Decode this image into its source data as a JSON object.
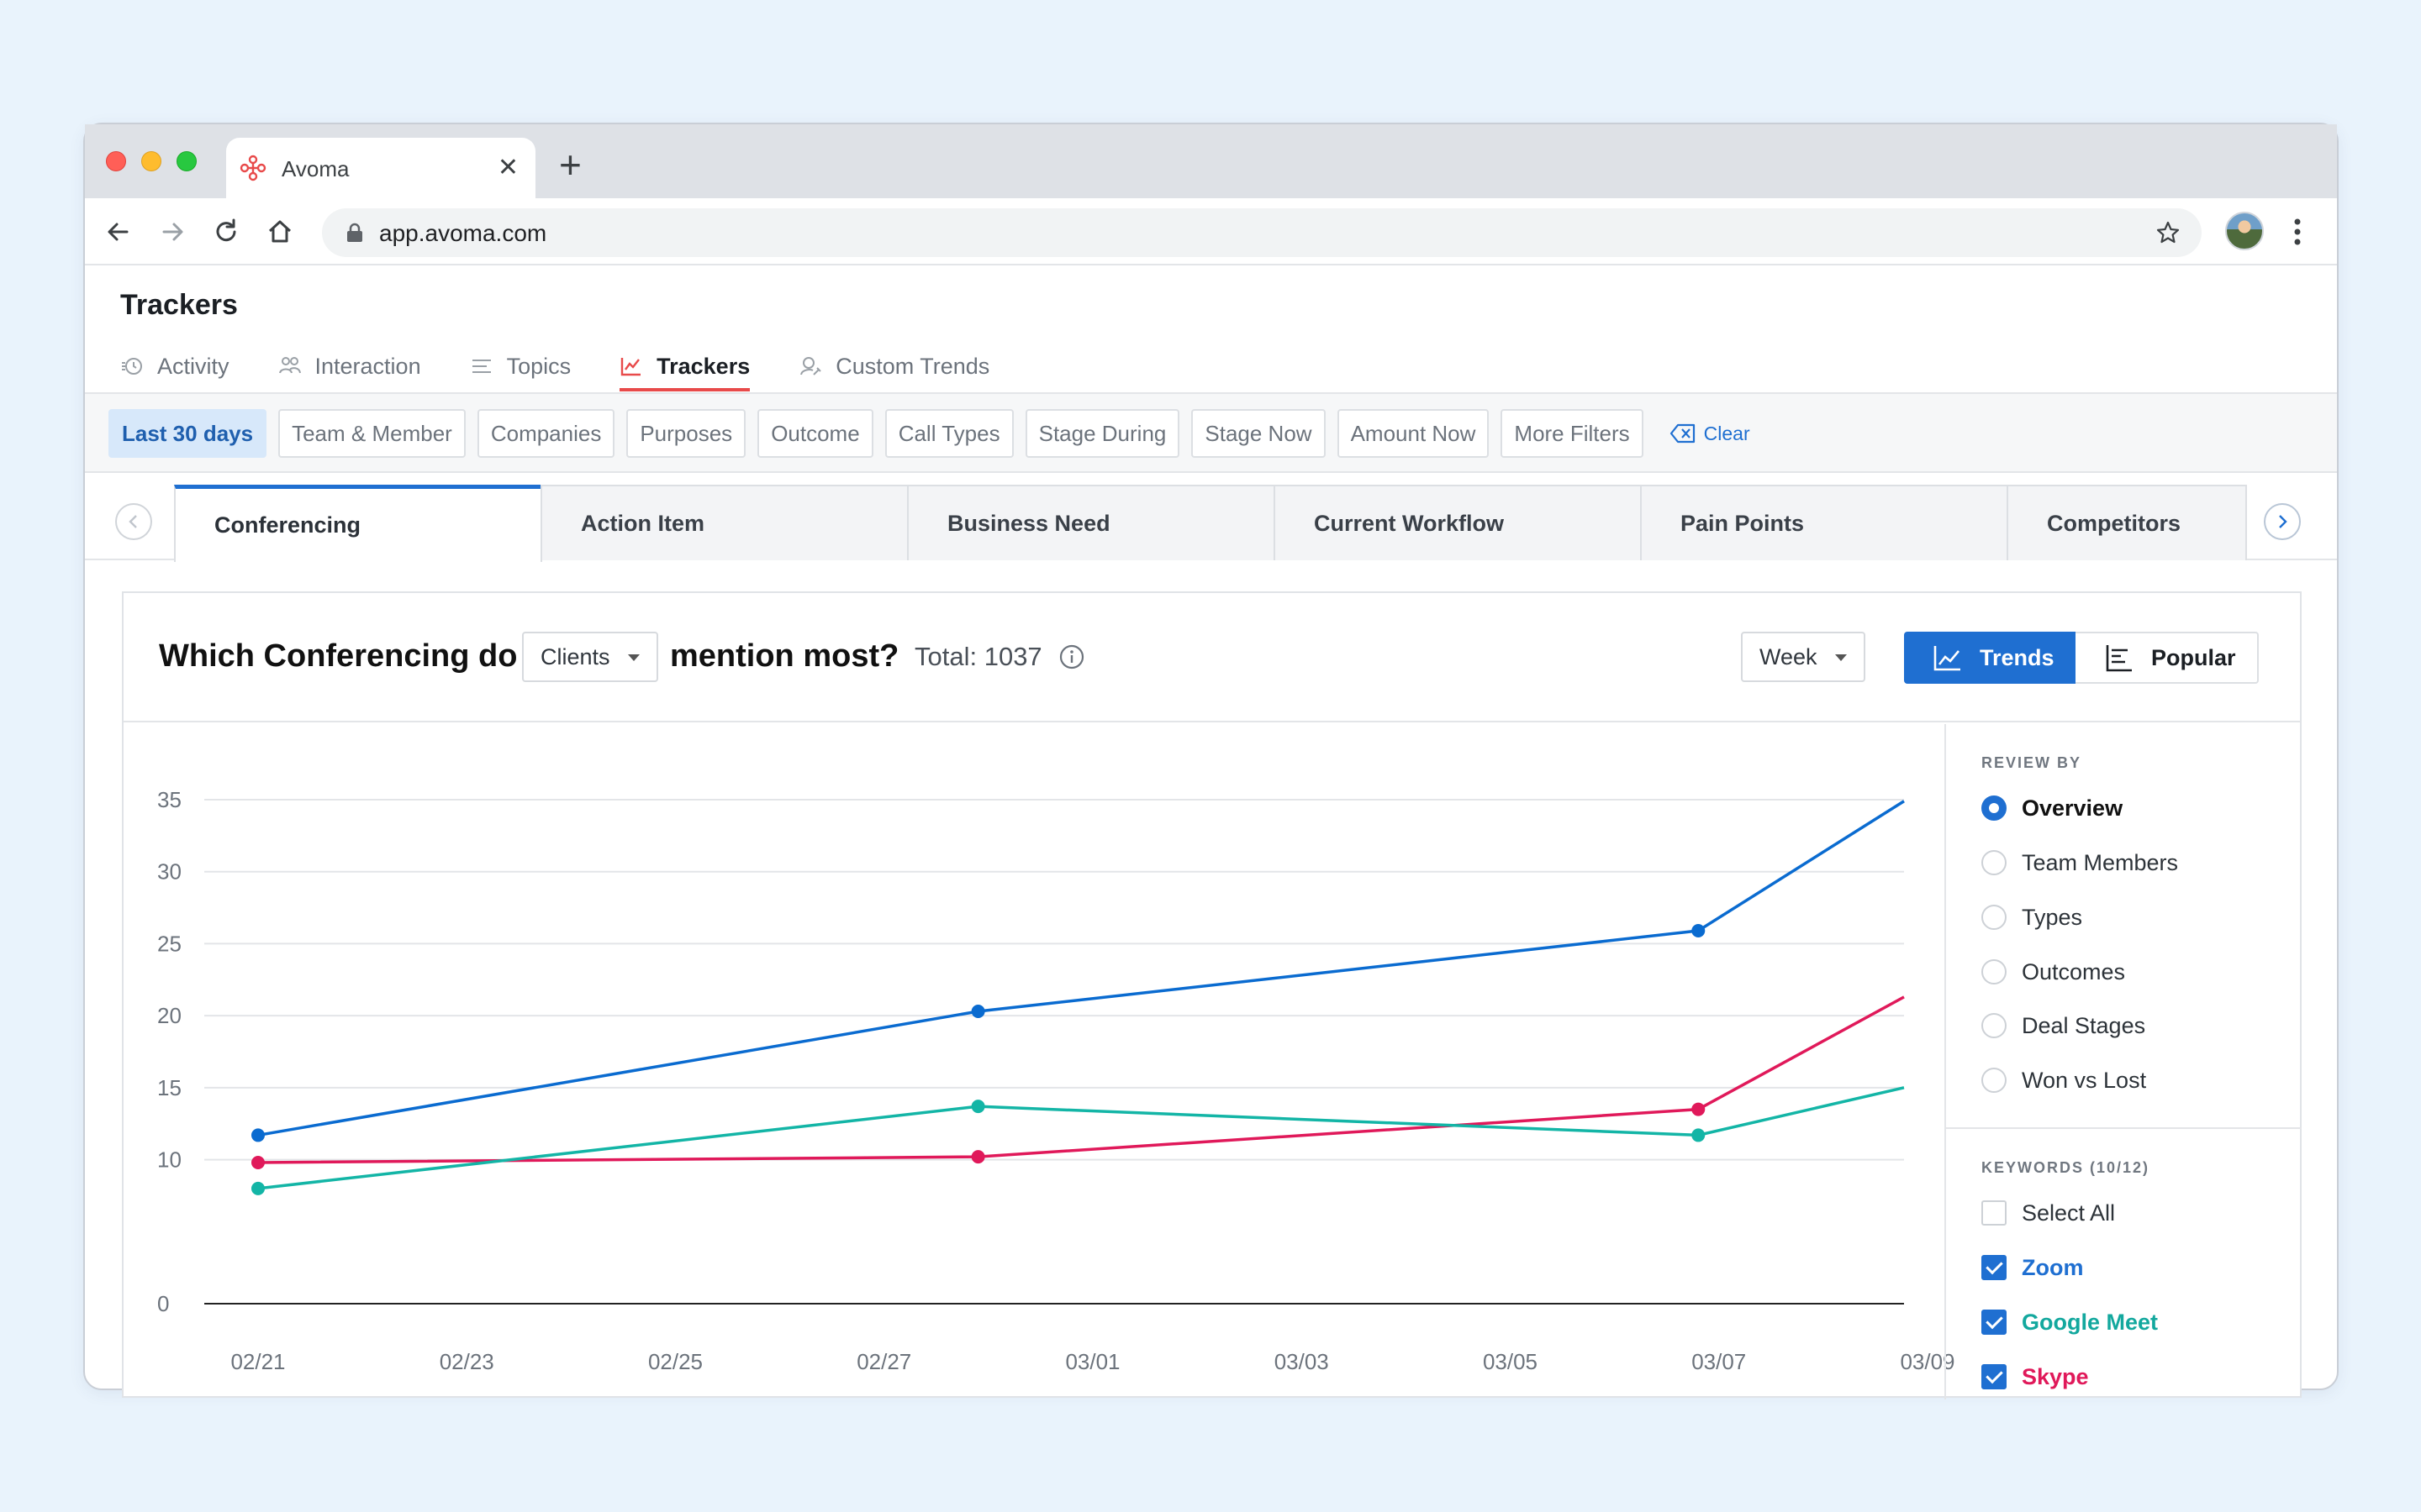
{
  "browser": {
    "tab_title": "Avoma",
    "url": "app.avoma.com"
  },
  "app": {
    "page_title": "Trackers",
    "nav_tabs": [
      {
        "label": "Activity",
        "icon": "activity-icon"
      },
      {
        "label": "Interaction",
        "icon": "interaction-icon"
      },
      {
        "label": "Topics",
        "icon": "topics-icon"
      },
      {
        "label": "Trackers",
        "icon": "trackers-icon",
        "active": true
      },
      {
        "label": "Custom Trends",
        "icon": "custom-trends-icon"
      }
    ],
    "filters": [
      "Last 30 days",
      "Team & Member",
      "Companies",
      "Purposes",
      "Outcome",
      "Call Types",
      "Stage During",
      "Stage Now",
      "Amount Now",
      "More Filters"
    ],
    "clear_label": "Clear",
    "keyword_tabs": [
      "Conferencing",
      "Action Item",
      "Business Need",
      "Current Workflow",
      "Pain Points",
      "Competitors"
    ],
    "active_keyword_tab": "Conferencing"
  },
  "card": {
    "question_prefix": "Which Conferencing do",
    "audience_select": "Clients",
    "question_suffix": "mention most?",
    "total": "Total: 1037",
    "period_select": "Week",
    "view_trends": "Trends",
    "view_popular": "Popular"
  },
  "sidebar": {
    "review_by_label": "REVIEW BY",
    "review_options": [
      {
        "label": "Overview",
        "selected": true
      },
      {
        "label": "Team Members",
        "selected": false
      },
      {
        "label": "Types",
        "selected": false
      },
      {
        "label": "Outcomes",
        "selected": false
      },
      {
        "label": "Deal Stages",
        "selected": false
      },
      {
        "label": "Won vs Lost",
        "selected": false
      }
    ],
    "keywords_label": "KEYWORDS (10/12)",
    "keywords": [
      {
        "label": "Select All",
        "checked": false,
        "color": "#2d3339"
      },
      {
        "label": "Zoom",
        "checked": true,
        "color": "#1f6fd1"
      },
      {
        "label": "Google Meet",
        "checked": true,
        "color": "#13a89e"
      },
      {
        "label": "Skype",
        "checked": true,
        "color": "#e0195a"
      }
    ]
  },
  "colors": {
    "accent": "#1f6fd1",
    "trackers_active": "#e84a4a"
  },
  "chart_data": {
    "type": "line",
    "y_ticks": [
      0,
      10,
      15,
      20,
      25,
      30,
      35
    ],
    "ylim": [
      0,
      35
    ],
    "x_ticks": [
      "02/21",
      "02/23",
      "02/25",
      "02/27",
      "03/01",
      "03/03",
      "03/05",
      "03/07",
      "03/09"
    ],
    "x_start": "2021-02-21",
    "x_end": "2021-03-09",
    "grid": true,
    "series": [
      {
        "name": "Zoom",
        "color": "#0a6bd0",
        "points": [
          [
            "2021-02-21",
            11.7
          ],
          [
            "2021-02-28",
            20.3
          ],
          [
            "2021-03-07",
            25.9
          ],
          [
            "2021-03-09",
            34.9
          ]
        ],
        "markers": 3
      },
      {
        "name": "Skype",
        "color": "#e0195a",
        "points": [
          [
            "2021-02-21",
            9.8
          ],
          [
            "2021-02-28",
            10.2
          ],
          [
            "2021-03-07",
            13.5
          ],
          [
            "2021-03-09",
            21.3
          ]
        ],
        "markers": 3
      },
      {
        "name": "Google Meet",
        "color": "#13b5a6",
        "points": [
          [
            "2021-02-21",
            8.0
          ],
          [
            "2021-02-28",
            13.7
          ],
          [
            "2021-03-07",
            11.7
          ],
          [
            "2021-03-09",
            15.0
          ]
        ],
        "markers": 3
      }
    ]
  }
}
